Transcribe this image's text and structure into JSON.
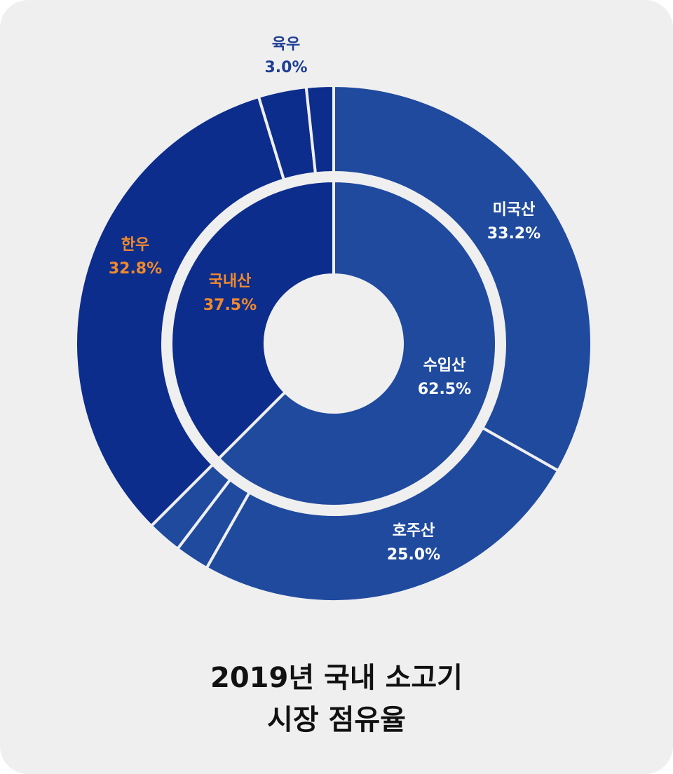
{
  "colors": {
    "background": "#efeff0",
    "separator": "#efeff0",
    "domestic": "#0d2d8c",
    "import": "#1f4a9e",
    "label_white": "#ffffff",
    "label_orange": "#f08a2c",
    "label_navy": "#1f3e94",
    "title": "#111111"
  },
  "chart_data": {
    "type": "pie",
    "title_lines": [
      "2019년 국내 소고기",
      "시장 점유율"
    ],
    "inner": [
      {
        "name": "수입산",
        "value": 62.5,
        "label": "62.5%"
      },
      {
        "name": "국내산",
        "value": 37.5,
        "label": "37.5%"
      }
    ],
    "outer": [
      {
        "name": "미국산",
        "value": 33.2,
        "label": "33.2%",
        "group": "수입산"
      },
      {
        "name": "호주산",
        "value": 25.0,
        "label": "25.0%",
        "group": "수입산"
      },
      {
        "name": "",
        "value": 2.15,
        "label": "",
        "group": "수입산"
      },
      {
        "name": "",
        "value": 2.15,
        "label": "",
        "group": "수입산"
      },
      {
        "name": "한우",
        "value": 32.8,
        "label": "32.8%",
        "group": "국내산"
      },
      {
        "name": "육우",
        "value": 3.0,
        "label": "3.0%",
        "group": "국내산"
      },
      {
        "name": "",
        "value": 1.7,
        "label": "",
        "group": "국내산"
      }
    ]
  }
}
